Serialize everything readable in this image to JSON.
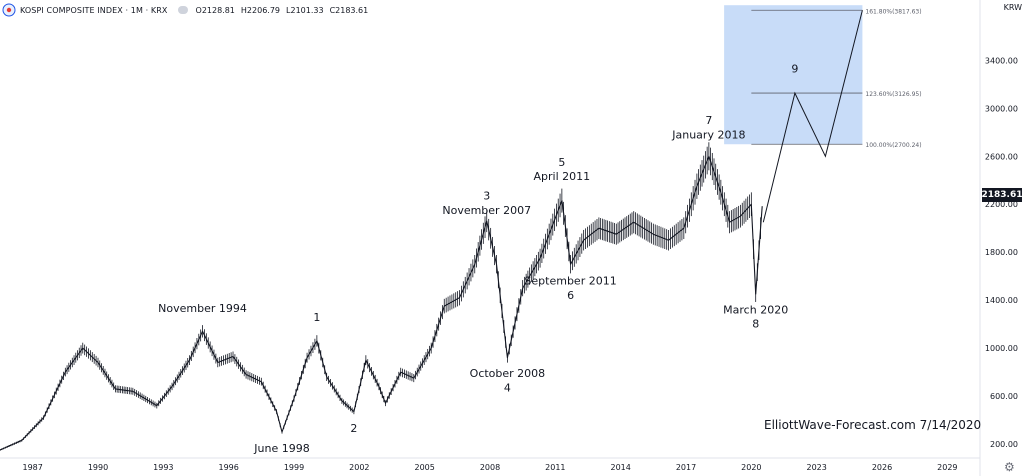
{
  "header": {
    "symbol": "KOSPI COMPOSITE INDEX · 1M · KRX",
    "open": "O2128.81",
    "high": "H2206.79",
    "low": "L2101.33",
    "close": "C2183.61"
  },
  "axis": {
    "currency": "KRW",
    "last_price": "2183.61"
  },
  "watermark": "ElliottWave-Forecast.com 7/14/2020",
  "chart_data": {
    "type": "line",
    "x_scale": "time (years)",
    "xlim": [
      1985.5,
      2030.5
    ],
    "ylim": [
      100,
      3870
    ],
    "x_tick_labels": [
      "1987",
      "1990",
      "1993",
      "1996",
      "1999",
      "2002",
      "2005",
      "2008",
      "2011",
      "2014",
      "2017",
      "2020",
      "2023",
      "2026",
      "2029"
    ],
    "y_tick_labels": [
      "200.00",
      "600.00",
      "1000.00",
      "1400.00",
      "1800.00",
      "2200.00",
      "2600.00",
      "3000.00",
      "3400.00"
    ],
    "grid": false,
    "series": [
      {
        "values_format": "[year, close]",
        "values": [
          [
            1985.5,
            150
          ],
          [
            1986.5,
            230
          ],
          [
            1987.5,
            420
          ],
          [
            1988.5,
            800
          ],
          [
            1989.3,
            1000
          ],
          [
            1990.0,
            880
          ],
          [
            1990.8,
            660
          ],
          [
            1991.6,
            640
          ],
          [
            1992.7,
            520
          ],
          [
            1993.4,
            680
          ],
          [
            1994.2,
            900
          ],
          [
            1994.8,
            1140
          ],
          [
            1995.5,
            880
          ],
          [
            1996.2,
            930
          ],
          [
            1996.8,
            780
          ],
          [
            1997.5,
            720
          ],
          [
            1998.2,
            470
          ],
          [
            1998.45,
            300
          ],
          [
            1999.0,
            580
          ],
          [
            1999.6,
            920
          ],
          [
            2000.05,
            1060
          ],
          [
            2000.5,
            760
          ],
          [
            2001.2,
            560
          ],
          [
            2001.75,
            470
          ],
          [
            2002.3,
            900
          ],
          [
            2002.9,
            680
          ],
          [
            2003.2,
            540
          ],
          [
            2003.9,
            800
          ],
          [
            2004.5,
            750
          ],
          [
            2005.3,
            1000
          ],
          [
            2005.9,
            1350
          ],
          [
            2006.6,
            1420
          ],
          [
            2007.3,
            1700
          ],
          [
            2007.85,
            2060
          ],
          [
            2008.3,
            1700
          ],
          [
            2008.8,
            920
          ],
          [
            2009.5,
            1500
          ],
          [
            2010.3,
            1750
          ],
          [
            2011.3,
            2230
          ],
          [
            2011.7,
            1700
          ],
          [
            2012.3,
            1900
          ],
          [
            2013.0,
            2000
          ],
          [
            2013.8,
            1950
          ],
          [
            2014.6,
            2050
          ],
          [
            2015.5,
            1950
          ],
          [
            2016.2,
            1900
          ],
          [
            2016.9,
            2000
          ],
          [
            2017.5,
            2350
          ],
          [
            2018.05,
            2600
          ],
          [
            2018.6,
            2300
          ],
          [
            2019.0,
            2050
          ],
          [
            2019.5,
            2100
          ],
          [
            2020.0,
            2200
          ],
          [
            2020.2,
            1450
          ],
          [
            2020.5,
            2183.61
          ]
        ]
      }
    ],
    "projection": [
      [
        2020.55,
        2050
      ],
      [
        2022.0,
        3127
      ],
      [
        2023.4,
        2600
      ],
      [
        2025.1,
        3818
      ]
    ],
    "target_box": {
      "x": [
        2018.75,
        2025.1
      ],
      "y": [
        2700.24,
        3860
      ]
    },
    "fib_levels": [
      {
        "label": "161.80%(3817.63)",
        "value": 3817.63
      },
      {
        "label": "123.60%(3126.95)",
        "value": 3126.95
      },
      {
        "label": "100.00%(2700.24)",
        "value": 2700.24
      }
    ],
    "annotations": [
      {
        "text": "November 1994",
        "x": 1994.8,
        "y": 1300,
        "anchor": "middle"
      },
      {
        "text": "1",
        "x": 2000.05,
        "y": 1225,
        "anchor": "middle"
      },
      {
        "text": "June 1998",
        "x": 1998.45,
        "y": 135,
        "anchor": "middle"
      },
      {
        "text": "2",
        "x": 2001.75,
        "y": 300,
        "anchor": "middle"
      },
      {
        "text": "3",
        "x": 2007.85,
        "y": 2240,
        "anchor": "middle"
      },
      {
        "text": "November 2007",
        "x": 2007.85,
        "y": 2120,
        "anchor": "middle"
      },
      {
        "text": "October 2008",
        "x": 2008.8,
        "y": 760,
        "anchor": "middle"
      },
      {
        "text": "4",
        "x": 2008.8,
        "y": 640,
        "anchor": "middle"
      },
      {
        "text": "5",
        "x": 2011.3,
        "y": 2520,
        "anchor": "middle"
      },
      {
        "text": "April 2011",
        "x": 2011.3,
        "y": 2400,
        "anchor": "middle"
      },
      {
        "text": "September 2011",
        "x": 2011.7,
        "y": 1530,
        "anchor": "middle"
      },
      {
        "text": "6",
        "x": 2011.7,
        "y": 1410,
        "anchor": "middle"
      },
      {
        "text": "7",
        "x": 2018.05,
        "y": 2870,
        "anchor": "middle"
      },
      {
        "text": "January 2018",
        "x": 2018.05,
        "y": 2750,
        "anchor": "middle"
      },
      {
        "text": "March 2020",
        "x": 2020.2,
        "y": 1290,
        "anchor": "middle"
      },
      {
        "text": "8",
        "x": 2020.2,
        "y": 1170,
        "anchor": "middle"
      },
      {
        "text": "9",
        "x": 2022.0,
        "y": 3300,
        "anchor": "middle"
      }
    ]
  },
  "colors": {
    "price_line": "#131722",
    "box_fill": "#c8dcf8",
    "fib_line": "#5d606b",
    "axis_text": "#131722"
  }
}
